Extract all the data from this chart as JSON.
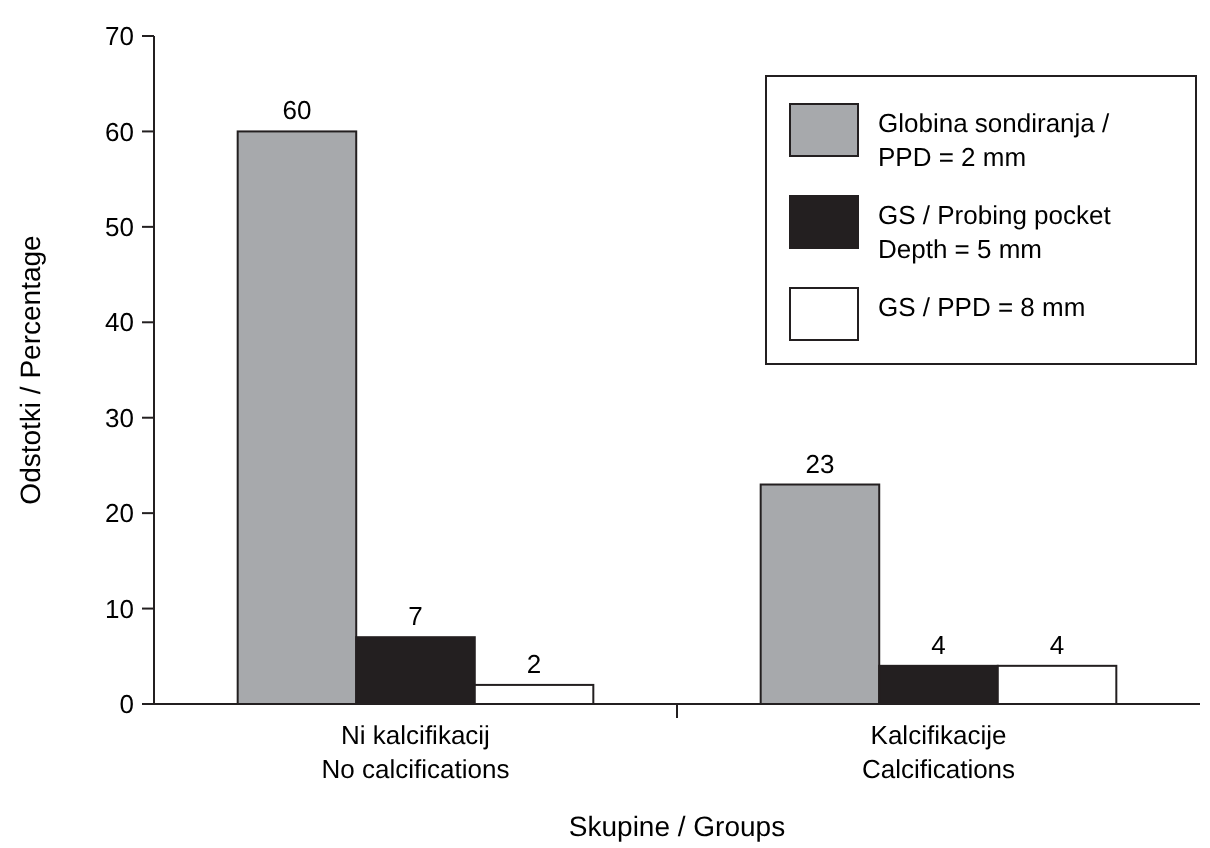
{
  "chart_data": {
    "type": "bar",
    "xlabel": "Skupine / Groups",
    "ylabel": "Odstotki / Percentage",
    "categories": [
      "Ni kalcifikacij\nNo calcifications",
      "Kalcifikacije\nCalcifications"
    ],
    "series": [
      {
        "name": "Globina sondiranja / PPD = 2 mm",
        "color": "#a7a9ac",
        "values": [
          60,
          23
        ]
      },
      {
        "name": "GS / Probing pocket Depth = 5 mm",
        "color": "#231f20",
        "values": [
          7,
          4
        ]
      },
      {
        "name": "GS / PPD = 8 mm",
        "color": "#ffffff",
        "values": [
          2,
          4
        ]
      }
    ],
    "ylim": [
      0,
      70
    ],
    "yticks": [
      0,
      10,
      20,
      30,
      40,
      50,
      60,
      70
    ],
    "data_labels": true,
    "legend": "top right",
    "grid": false
  }
}
